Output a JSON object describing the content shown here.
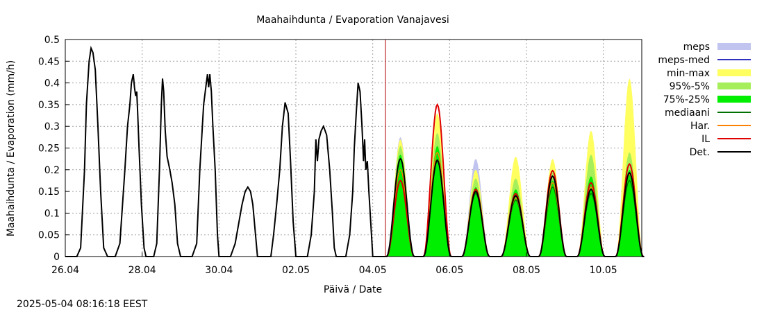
{
  "chart_data": {
    "type": "area",
    "title": "Maahaihdunta / Evaporation  Vanajavesi",
    "xlabel": "Päivä / Date",
    "ylabel": "Maahaihdunta / Evaporation (mm/h)",
    "timestamp": "2025-05-04 08:16:18 EEST",
    "x_unit": "days since 26.04 00:00",
    "xlim": [
      0,
      15.0
    ],
    "ylim": [
      0,
      0.5
    ],
    "grid": true,
    "legend_position": "right",
    "x_ticks": [
      {
        "x": 0,
        "label": "26.04"
      },
      {
        "x": 2,
        "label": "28.04"
      },
      {
        "x": 4,
        "label": "30.04"
      },
      {
        "x": 6,
        "label": "02.05"
      },
      {
        "x": 8,
        "label": "04.05"
      },
      {
        "x": 10,
        "label": "06.05"
      },
      {
        "x": 12,
        "label": "08.05"
      },
      {
        "x": 14,
        "label": "10.05"
      }
    ],
    "y_ticks": [
      {
        "y": 0,
        "label": "0"
      },
      {
        "y": 0.05,
        "label": "0.05"
      },
      {
        "y": 0.1,
        "label": "0.1"
      },
      {
        "y": 0.15,
        "label": "0.15"
      },
      {
        "y": 0.2,
        "label": "0.2"
      },
      {
        "y": 0.25,
        "label": "0.25"
      },
      {
        "y": 0.3,
        "label": "0.3"
      },
      {
        "y": 0.35,
        "label": "0.35"
      },
      {
        "y": 0.4,
        "label": "0.4"
      },
      {
        "y": 0.45,
        "label": "0.45"
      },
      {
        "y": 0.5,
        "label": "0.5"
      }
    ],
    "now_marker": {
      "x": 8.33,
      "color": "#b00000"
    },
    "legend": [
      {
        "label": "meps",
        "kind": "band",
        "color": "#c0c4ee"
      },
      {
        "label": "meps-med",
        "kind": "line",
        "color": "#3030c0"
      },
      {
        "label": "min-max",
        "kind": "band",
        "color": "#ffff60"
      },
      {
        "label": "95%-5%",
        "kind": "band",
        "color": "#a6ef5a"
      },
      {
        "label": "75%-25%",
        "kind": "band",
        "color": "#00ee00"
      },
      {
        "label": "mediaani",
        "kind": "line",
        "color": "#007000"
      },
      {
        "label": "Har.",
        "kind": "line",
        "color": "#ff8000"
      },
      {
        "label": "IL",
        "kind": "line",
        "color": "#e00000"
      },
      {
        "label": "Det.",
        "kind": "line",
        "color": "#000000"
      }
    ],
    "observed": {
      "name": "Det.",
      "color": "#000000",
      "points": [
        [
          0,
          0
        ],
        [
          0.3,
          0
        ],
        [
          0.4,
          0.02
        ],
        [
          0.5,
          0.2
        ],
        [
          0.55,
          0.35
        ],
        [
          0.62,
          0.45
        ],
        [
          0.67,
          0.48
        ],
        [
          0.72,
          0.47
        ],
        [
          0.78,
          0.43
        ],
        [
          0.85,
          0.3
        ],
        [
          0.92,
          0.15
        ],
        [
          1.0,
          0.02
        ],
        [
          1.1,
          0
        ],
        [
          1.3,
          0
        ],
        [
          1.42,
          0.03
        ],
        [
          1.55,
          0.2
        ],
        [
          1.62,
          0.3
        ],
        [
          1.68,
          0.35
        ],
        [
          1.72,
          0.4
        ],
        [
          1.77,
          0.42
        ],
        [
          1.8,
          0.39
        ],
        [
          1.83,
          0.37
        ],
        [
          1.86,
          0.38
        ],
        [
          1.88,
          0.34
        ],
        [
          1.92,
          0.25
        ],
        [
          1.98,
          0.12
        ],
        [
          2.05,
          0.02
        ],
        [
          2.1,
          0
        ],
        [
          2.3,
          0
        ],
        [
          2.38,
          0.03
        ],
        [
          2.45,
          0.2
        ],
        [
          2.5,
          0.35
        ],
        [
          2.53,
          0.41
        ],
        [
          2.56,
          0.38
        ],
        [
          2.6,
          0.29
        ],
        [
          2.65,
          0.23
        ],
        [
          2.72,
          0.2
        ],
        [
          2.78,
          0.17
        ],
        [
          2.85,
          0.12
        ],
        [
          2.92,
          0.03
        ],
        [
          3.0,
          0
        ],
        [
          3.3,
          0
        ],
        [
          3.42,
          0.03
        ],
        [
          3.5,
          0.2
        ],
        [
          3.6,
          0.35
        ],
        [
          3.67,
          0.4
        ],
        [
          3.7,
          0.42
        ],
        [
          3.73,
          0.39
        ],
        [
          3.76,
          0.42
        ],
        [
          3.8,
          0.38
        ],
        [
          3.84,
          0.3
        ],
        [
          3.9,
          0.2
        ],
        [
          3.96,
          0.05
        ],
        [
          4.0,
          0
        ],
        [
          4.3,
          0
        ],
        [
          4.42,
          0.03
        ],
        [
          4.52,
          0.08
        ],
        [
          4.6,
          0.12
        ],
        [
          4.68,
          0.15
        ],
        [
          4.75,
          0.16
        ],
        [
          4.82,
          0.15
        ],
        [
          4.88,
          0.12
        ],
        [
          4.95,
          0.05
        ],
        [
          5.0,
          0
        ],
        [
          5.35,
          0
        ],
        [
          5.42,
          0.05
        ],
        [
          5.5,
          0.12
        ],
        [
          5.58,
          0.2
        ],
        [
          5.65,
          0.3
        ],
        [
          5.72,
          0.355
        ],
        [
          5.8,
          0.33
        ],
        [
          5.86,
          0.22
        ],
        [
          5.93,
          0.08
        ],
        [
          6.0,
          0
        ],
        [
          6.3,
          0
        ],
        [
          6.4,
          0.05
        ],
        [
          6.48,
          0.15
        ],
        [
          6.52,
          0.27
        ],
        [
          6.56,
          0.22
        ],
        [
          6.6,
          0.27
        ],
        [
          6.66,
          0.29
        ],
        [
          6.72,
          0.3
        ],
        [
          6.8,
          0.28
        ],
        [
          6.88,
          0.2
        ],
        [
          6.95,
          0.1
        ],
        [
          7.0,
          0.02
        ],
        [
          7.05,
          0
        ],
        [
          7.3,
          0
        ],
        [
          7.4,
          0.05
        ],
        [
          7.48,
          0.15
        ],
        [
          7.52,
          0.25
        ],
        [
          7.57,
          0.33
        ],
        [
          7.62,
          0.4
        ],
        [
          7.67,
          0.38
        ],
        [
          7.72,
          0.3
        ],
        [
          7.76,
          0.22
        ],
        [
          7.79,
          0.27
        ],
        [
          7.82,
          0.2
        ],
        [
          7.86,
          0.22
        ],
        [
          7.9,
          0.15
        ],
        [
          7.96,
          0.06
        ],
        [
          8.0,
          0
        ],
        [
          8.1,
          0
        ]
      ]
    },
    "forecast_days": [
      {
        "peak_x": 8.72,
        "width": 0.36,
        "minmax": [
          0.0,
          0.27
        ],
        "p95": [
          0.0,
          0.255
        ],
        "p75": [
          0.0,
          0.235
        ],
        "meps": 0.275,
        "median": 0.2,
        "har": 0.2,
        "il": 0.175,
        "det": 0.225
      },
      {
        "peak_x": 9.68,
        "width": 0.36,
        "minmax": [
          0.0,
          0.33
        ],
        "p95": [
          0.0,
          0.285
        ],
        "p75": [
          0.0,
          0.255
        ],
        "meps": 0.26,
        "median": 0.22,
        "har": 0.24,
        "il": 0.35,
        "det": 0.222
      },
      {
        "peak_x": 10.68,
        "width": 0.36,
        "minmax": [
          0.0,
          0.2
        ],
        "p95": [
          0.0,
          0.18
        ],
        "p75": [
          0.0,
          0.16
        ],
        "meps": 0.225,
        "median": 0.145,
        "har": 0.15,
        "il": 0.155,
        "det": 0.15
      },
      {
        "peak_x": 11.72,
        "width": 0.38,
        "minmax": [
          0.0,
          0.23
        ],
        "p95": [
          0.0,
          0.18
        ],
        "p75": [
          0.0,
          0.155
        ],
        "meps": 0.17,
        "median": 0.13,
        "har": 0.135,
        "il": 0.145,
        "det": 0.14
      },
      {
        "peak_x": 12.68,
        "width": 0.36,
        "minmax": [
          0.0,
          0.225
        ],
        "p95": [
          0.0,
          0.2
        ],
        "p75": [
          0.0,
          0.175
        ],
        "meps": 0.2,
        "median": 0.16,
        "har": 0.17,
        "il": 0.198,
        "det": 0.185
      },
      {
        "peak_x": 13.68,
        "width": 0.36,
        "minmax": [
          0.0,
          0.29
        ],
        "p95": [
          0.0,
          0.235
        ],
        "p75": [
          0.0,
          0.185
        ],
        "meps": 0.2,
        "median": 0.145,
        "har": 0.16,
        "il": 0.17,
        "det": 0.155
      },
      {
        "peak_x": 14.68,
        "width": 0.36,
        "minmax": [
          0.0,
          0.41
        ],
        "p95": [
          0.0,
          0.24
        ],
        "p75": [
          0.0,
          0.2
        ],
        "meps": 0.22,
        "median": 0.175,
        "har": 0.19,
        "il": 0.213,
        "det": 0.193
      }
    ]
  }
}
